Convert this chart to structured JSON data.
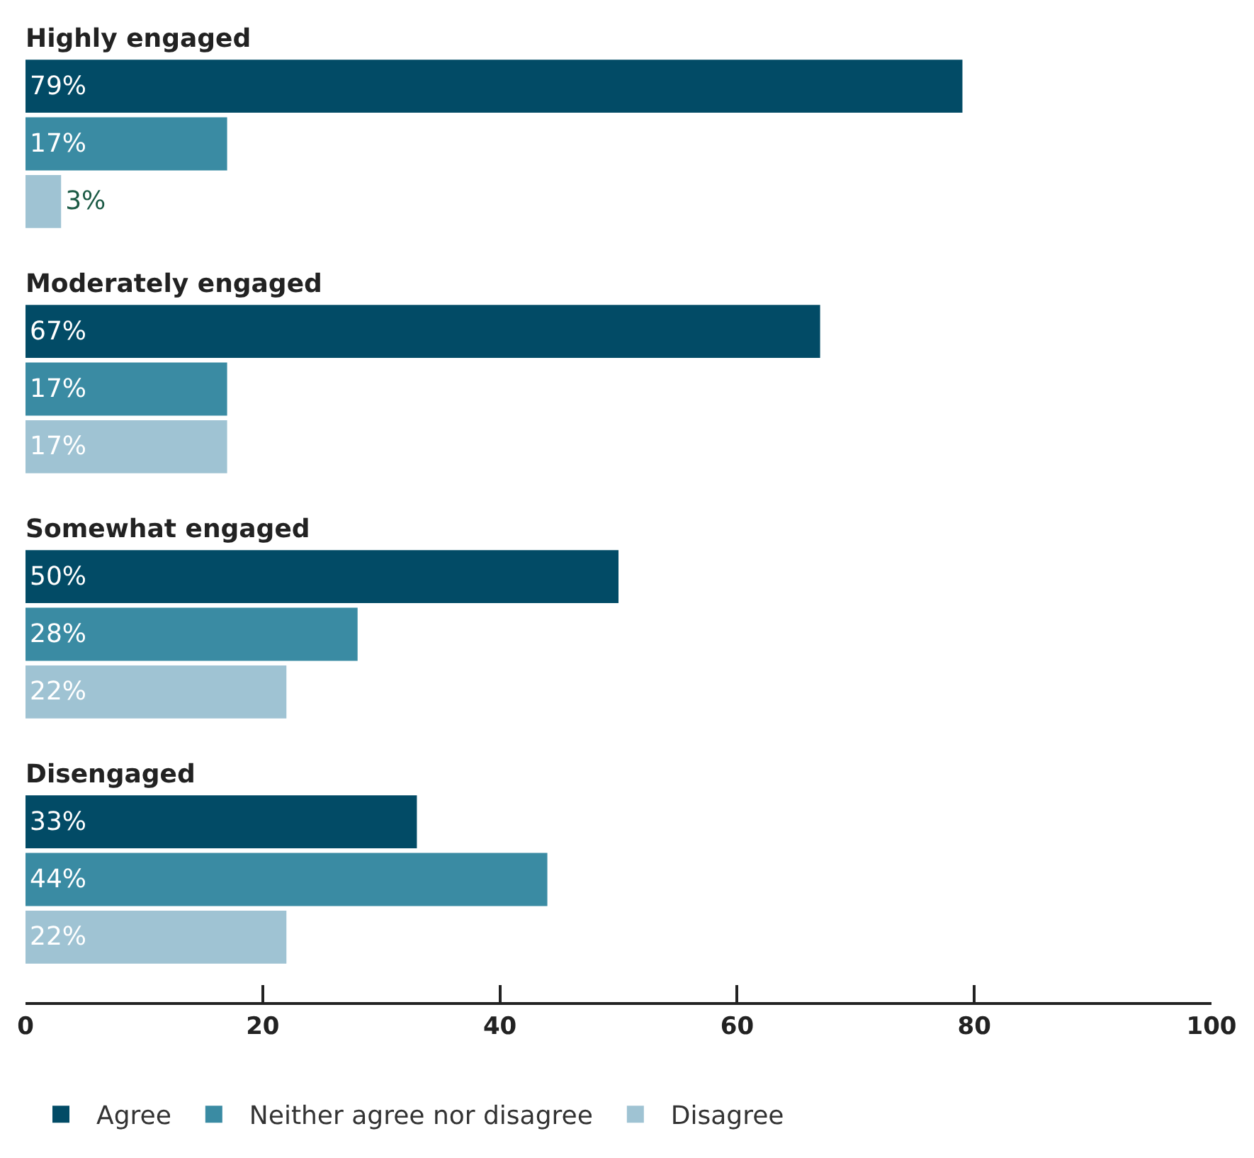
{
  "chart_data": {
    "type": "bar",
    "orientation": "horizontal",
    "categories": [
      "Highly engaged",
      "Moderately engaged",
      "Somewhat engaged",
      "Disengaged"
    ],
    "series": [
      {
        "name": "Agree",
        "color": "#024b66",
        "values": [
          79,
          67,
          50,
          33
        ],
        "value_labels": [
          "79%",
          "67%",
          "50%",
          "33%"
        ]
      },
      {
        "name": "Neither agree nor disagree",
        "color": "#3a8ba3",
        "values": [
          17,
          17,
          28,
          44
        ],
        "value_labels": [
          "17%",
          "17%",
          "28%",
          "44%"
        ]
      },
      {
        "name": "Disagree",
        "color": "#9fc3d3",
        "values": [
          3,
          17,
          22,
          22
        ],
        "value_labels": [
          "3%",
          "17%",
          "22%",
          "22%"
        ]
      }
    ],
    "xlim": [
      0,
      100
    ],
    "xticks": [
      0,
      20,
      40,
      60,
      80,
      100
    ],
    "legend": "bottom"
  }
}
